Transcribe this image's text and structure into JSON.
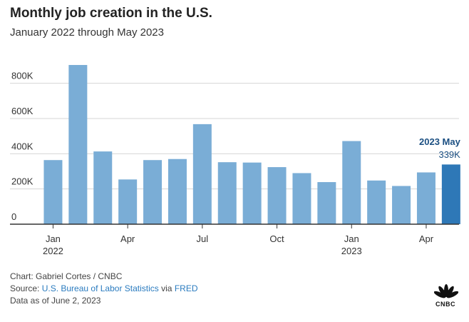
{
  "header": {
    "title": "Monthly job creation in the U.S.",
    "subtitle": "January 2022 through May 2023"
  },
  "chart_data": {
    "type": "bar",
    "categories": [
      "2022-01",
      "2022-02",
      "2022-03",
      "2022-04",
      "2022-05",
      "2022-06",
      "2022-07",
      "2022-08",
      "2022-09",
      "2022-10",
      "2022-11",
      "2022-12",
      "2023-01",
      "2023-02",
      "2023-03",
      "2023-04",
      "2023-05"
    ],
    "values": [
      364000,
      904000,
      413000,
      254000,
      364000,
      370000,
      568000,
      352000,
      350000,
      324000,
      290000,
      239000,
      472000,
      248000,
      217000,
      294000,
      339000
    ],
    "ylim": [
      0,
      900000
    ],
    "yticks": [
      0,
      200000,
      400000,
      600000,
      800000
    ],
    "ytick_labels": [
      "0",
      "200K",
      "400K",
      "600K",
      "800K"
    ],
    "xtick_labels": [
      {
        "month": "Jan",
        "year": "2022"
      },
      {
        "month": "Apr",
        "year": ""
      },
      {
        "month": "Jul",
        "year": ""
      },
      {
        "month": "Oct",
        "year": ""
      },
      {
        "month": "Jan",
        "year": "2023"
      },
      {
        "month": "Apr",
        "year": ""
      }
    ],
    "xtick_indices": [
      0,
      3,
      6,
      9,
      12,
      15
    ],
    "highlight_index": 16,
    "annotation": {
      "label": "2023 May",
      "value_label": "339K"
    },
    "grid": true,
    "bar_color": "#7aadd6",
    "highlight_color": "#2e78b7",
    "annotation_color": "#1b4f82"
  },
  "footer": {
    "credit": "Chart: Gabriel Cortes / CNBC",
    "source_prefix": "Source:",
    "source_link1": "U.S. Bureau of Labor Statistics",
    "source_mid": "via",
    "source_link2": "FRED",
    "data_date": "Data as of June 2, 2023"
  },
  "logo": {
    "icon": "peacock-icon",
    "text": "CNBC"
  }
}
